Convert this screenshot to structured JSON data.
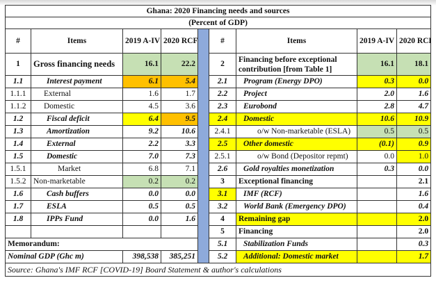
{
  "title": "Ghana: 2020 Financing needs and sources",
  "subtitle": "(Percent of GDP)",
  "headers": {
    "num": "#",
    "items": "Items",
    "y2019": "2019 A-IV",
    "y2020": "2020 RCF"
  },
  "colors": {
    "green": "#c6e0b4",
    "orange": "#ffc000",
    "yellow": "#ffff00",
    "blue": "#8eaadb"
  },
  "first_row": {
    "left": {
      "num": "1",
      "item": "Gross financing needs",
      "v2019": "16.1",
      "v2020": "22.2"
    },
    "right": {
      "num": "2",
      "item": "Financing before exceptional contribution [from Table 1]",
      "v2019": "16.1",
      "v2020": "18.1"
    }
  },
  "rows": [
    {
      "left": {
        "num": "1.1",
        "item": "Interest payment",
        "v2019": "6.1",
        "v2020": "5.4",
        "style": "bi",
        "lvl": 1,
        "fill": [
          null,
          null,
          "#ffc000",
          "#ffc000"
        ]
      },
      "right": {
        "num": "2.1",
        "item": "Program (Energy DPO)",
        "v2019": "0.3",
        "v2020": "0.0",
        "style": "bi",
        "lvl": 1,
        "fill": [
          null,
          null,
          "#ffff00",
          "#ffff00"
        ]
      }
    },
    {
      "left": {
        "num": "1.1.1",
        "item": "External",
        "v2019": "1.6",
        "v2020": "1.7",
        "style": "n",
        "lvl": 2
      },
      "right": {
        "num": "2.2",
        "item": "Project",
        "v2019": "2.0",
        "v2020": "1.6",
        "style": "bi",
        "lvl": 1
      }
    },
    {
      "left": {
        "num": "1.1.2",
        "item": "Domestic",
        "v2019": "4.5",
        "v2020": "3.6",
        "style": "n",
        "lvl": 2
      },
      "right": {
        "num": "2.3",
        "item": "Eurobond",
        "v2019": "2.8",
        "v2020": "4.7",
        "style": "bi",
        "lvl": 1
      }
    },
    {
      "left": {
        "num": "1.2",
        "item": "Fiscal deficit",
        "v2019": "6.4",
        "v2020": "9.5",
        "style": "bi",
        "lvl": 1,
        "fill": [
          null,
          null,
          "#ffff00",
          "#ffc000"
        ]
      },
      "right": {
        "num": "2.4",
        "item": "Domestic",
        "v2019": "10.6",
        "v2020": "10.9",
        "style": "bi",
        "lvl": 1,
        "fill": [
          "#ffff00",
          "#ffff00",
          "#ffff00",
          "#ffff00"
        ]
      }
    },
    {
      "left": {
        "num": "1.3",
        "item": "Amortization",
        "v2019": "9.2",
        "v2020": "10.6",
        "style": "bi",
        "lvl": 1
      },
      "right": {
        "num": "2.4.1",
        "item": "o/w Non-marketable (ESLA)",
        "v2019": "0.5",
        "v2020": "0.5",
        "style": "n",
        "lvl": 2,
        "fill": [
          null,
          null,
          "#c6e0b4",
          "#c6e0b4"
        ]
      }
    },
    {
      "left": {
        "num": "1.4",
        "item": "External",
        "v2019": "2.2",
        "v2020": "3.3",
        "style": "bi",
        "lvl": 1
      },
      "right": {
        "num": "2.5",
        "item": "Other domestic",
        "v2019": "(0.1)",
        "v2020": "0.9",
        "style": "bi",
        "lvl": 1,
        "fill": [
          "#ffff00",
          "#ffff00",
          "#ffff00",
          "#ffff00"
        ]
      }
    },
    {
      "left": {
        "num": "1.5",
        "item": "Domestic",
        "v2019": "7.0",
        "v2020": "7.3",
        "style": "bi",
        "lvl": 1
      },
      "right": {
        "num": "2.5.1",
        "item": "o/w Bond (Depositor repmt)",
        "v2019": "0.0",
        "v2020": "1.0",
        "style": "n",
        "lvl": 2,
        "fill": [
          null,
          null,
          null,
          "#ffff00"
        ]
      }
    },
    {
      "left": {
        "num": "1.5.1",
        "item": "Market",
        "v2019": "6.8",
        "v2020": "7.1",
        "style": "n",
        "lvl": 3
      },
      "right": {
        "num": "2.6",
        "item": "Gold royalties monetization",
        "v2019": "0.3",
        "v2020": "0.0",
        "style": "bi",
        "lvl": 1
      }
    },
    {
      "left": {
        "num": "1.5.2",
        "item": "Non-marketable",
        "v2019": "0.2",
        "v2020": "0.2",
        "style": "n",
        "lvl": 0,
        "fill": [
          null,
          null,
          "#c6e0b4",
          "#c6e0b4"
        ]
      },
      "right": {
        "num": "3",
        "item": "Exceptional financing",
        "v2019": "",
        "v2020": "2.1",
        "style": "b",
        "lvl": 0
      }
    },
    {
      "left": {
        "num": "1.6",
        "item": "Cash buffers",
        "v2019": "0.0",
        "v2020": "0.0",
        "style": "bi",
        "lvl": 1
      },
      "right": {
        "num": "3.1",
        "item": "IMF (RCF)",
        "v2019": "",
        "v2020": "1.6",
        "style": "bi",
        "lvl": 1,
        "fill": [
          "#ffff00",
          null,
          null,
          null
        ]
      }
    },
    {
      "left": {
        "num": "1.7",
        "item": "ESLA",
        "v2019": "0.5",
        "v2020": "0.5",
        "style": "bi",
        "lvl": 1
      },
      "right": {
        "num": "3.2",
        "item": "World Bank (Emergency DPO)",
        "v2019": "",
        "v2020": "0.4",
        "style": "bi",
        "lvl": 1
      }
    },
    {
      "left": {
        "num": "1.8",
        "item": "IPPs Fund",
        "v2019": "0.0",
        "v2020": "1.6",
        "style": "bi",
        "lvl": 1
      },
      "right": {
        "num": "4",
        "item": "Remaining gap",
        "v2019": "",
        "v2020": "2.0",
        "style": "b",
        "lvl": 0,
        "fill": [
          null,
          "#ffff00",
          "#ffff00",
          "#ffff00"
        ]
      }
    },
    {
      "left": {
        "num": "",
        "item": "",
        "v2019": "",
        "v2020": "",
        "style": "n",
        "lvl": 0
      },
      "right": {
        "num": "5",
        "item": "Financing",
        "v2019": "",
        "v2020": "2.0",
        "style": "b",
        "lvl": 0
      }
    },
    {
      "left": {
        "span": "Memorandum:",
        "style": "b"
      },
      "right": {
        "num": "5.1",
        "item": "Stabilization Funds",
        "v2019": "",
        "v2020": "0.3",
        "style": "bi",
        "lvl": 1
      }
    },
    {
      "left": {
        "label": "Nominal GDP (Ghc m)",
        "v2019": "398,538",
        "v2020": "385,251",
        "style": "bi"
      },
      "right": {
        "num": "5.2",
        "item": "Additional: Domestic market",
        "v2019": "",
        "v2020": "1.7",
        "style": "bi",
        "lvl": 1,
        "fill": [
          null,
          "#ffff00",
          "#ffff00",
          "#ffff00"
        ]
      }
    }
  ],
  "source": "Source: Ghana's IMF RCF [COVID-19] Board Statement & author's calculations"
}
